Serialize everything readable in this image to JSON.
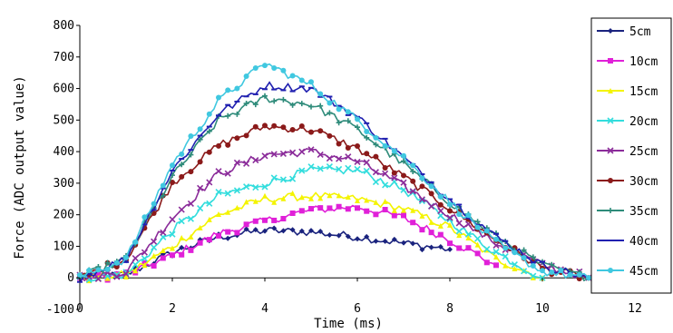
{
  "chart_data": {
    "type": "line",
    "xlabel": "Time (ms)",
    "ylabel": "Force (ADC output value)",
    "xlim": [
      0,
      12
    ],
    "ylim": [
      -100,
      800
    ],
    "x_ticks": [
      "0",
      "2",
      "4",
      "6",
      "8",
      "10",
      "12"
    ],
    "y_ticks": [
      "-100",
      "0",
      "100",
      "200",
      "300",
      "400",
      "500",
      "600",
      "700",
      "800"
    ],
    "grid": false,
    "legend_position": "right",
    "series": [
      {
        "name": "5cm",
        "color": "#1a237e",
        "marker": "diamond",
        "x": [
          0,
          1,
          2,
          3,
          4,
          5,
          6,
          7,
          8
        ],
        "y": [
          0,
          10,
          80,
          130,
          150,
          145,
          130,
          110,
          90
        ]
      },
      {
        "name": "10cm",
        "color": "#e020d8",
        "marker": "square",
        "x": [
          0,
          1,
          2,
          3,
          4,
          5,
          6,
          7,
          8,
          9
        ],
        "y": [
          0,
          10,
          70,
          140,
          180,
          215,
          225,
          190,
          120,
          40
        ]
      },
      {
        "name": "15cm",
        "color": "#f4f400",
        "marker": "triangle",
        "x": [
          0,
          1,
          2,
          3,
          4,
          5,
          6,
          7,
          8,
          9,
          10
        ],
        "y": [
          0,
          10,
          100,
          200,
          250,
          260,
          250,
          220,
          160,
          60,
          0
        ]
      },
      {
        "name": "20cm",
        "color": "#33dddd",
        "marker": "x",
        "x": [
          0,
          1,
          2,
          3,
          4,
          5,
          6,
          7,
          8,
          9,
          10
        ],
        "y": [
          0,
          10,
          150,
          260,
          300,
          340,
          340,
          280,
          180,
          80,
          0
        ]
      },
      {
        "name": "25cm",
        "color": "#8b2c9a",
        "marker": "x",
        "x": [
          0,
          1,
          2,
          3,
          4,
          5,
          6,
          7,
          8,
          9,
          10,
          11
        ],
        "y": [
          0,
          20,
          190,
          330,
          390,
          400,
          370,
          290,
          200,
          110,
          40,
          0
        ]
      },
      {
        "name": "30cm",
        "color": "#8b1a1a",
        "marker": "circle",
        "x": [
          0,
          1,
          2,
          3,
          4,
          5,
          6,
          7,
          8,
          9,
          10,
          11
        ],
        "y": [
          0,
          60,
          300,
          420,
          480,
          470,
          410,
          320,
          220,
          120,
          30,
          0
        ]
      },
      {
        "name": "35cm",
        "color": "#2e8b7a",
        "marker": "plus",
        "x": [
          0,
          1,
          2,
          3,
          4,
          5,
          6,
          7,
          8,
          9,
          10,
          11
        ],
        "y": [
          0,
          60,
          320,
          500,
          570,
          550,
          470,
          360,
          240,
          130,
          40,
          0
        ]
      },
      {
        "name": "40cm",
        "color": "#2020b0",
        "marker": "dash",
        "x": [
          0,
          1,
          2,
          3,
          4,
          5,
          6,
          7,
          8,
          9,
          10,
          11
        ],
        "y": [
          0,
          60,
          340,
          520,
          610,
          600,
          510,
          380,
          250,
          130,
          40,
          0
        ]
      },
      {
        "name": "45cm",
        "color": "#40c8e0",
        "marker": "circle",
        "x": [
          0,
          1,
          2,
          3,
          4,
          5,
          6,
          7,
          8,
          9,
          10,
          11
        ],
        "y": [
          0,
          60,
          360,
          560,
          680,
          610,
          500,
          380,
          240,
          110,
          20,
          0
        ]
      }
    ]
  }
}
